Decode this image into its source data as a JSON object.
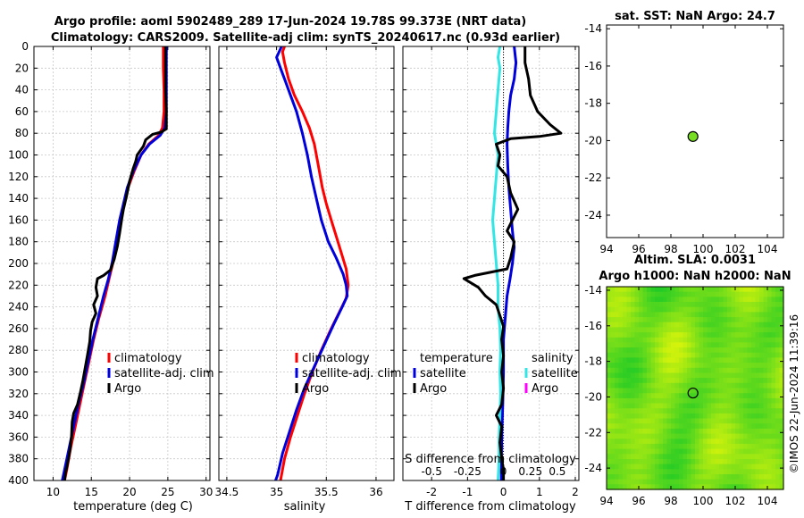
{
  "title": {
    "line1": "Argo profile: aoml 5902489_289 17-Jun-2024 19.78S 99.373E (NRT data)",
    "line2": "Climatology: CARS2009. Satellite-adj clim: synTS_20240617.nc (0.93d earlier)"
  },
  "colors": {
    "climatology": "#ff0000",
    "satellite": "#0000dd",
    "argo": "#000000",
    "sal_satellite": "#33e6e6",
    "sal_argo": "#ff00ff",
    "marker": "#77dd22"
  },
  "chart_data": [
    {
      "type": "line",
      "id": "temperature_profile",
      "xlabel": "temperature (deg C)",
      "ylabel": "",
      "xlim": [
        7.5,
        30.5
      ],
      "ylim": [
        400,
        0
      ],
      "xticks": [
        10,
        15,
        20,
        25,
        30
      ],
      "yticks": [
        0,
        20,
        40,
        60,
        80,
        100,
        120,
        140,
        160,
        180,
        200,
        220,
        240,
        260,
        280,
        300,
        320,
        340,
        360,
        380,
        400
      ],
      "grid": true,
      "legend": [
        "climatology",
        "satellite-adj. clim",
        "Argo"
      ],
      "series": [
        {
          "name": "climatology",
          "color_key": "climatology",
          "points": [
            [
              24.4,
              0
            ],
            [
              24.4,
              20
            ],
            [
              24.5,
              40
            ],
            [
              24.5,
              60
            ],
            [
              24.3,
              75
            ],
            [
              23.8,
              82
            ],
            [
              22.5,
              90
            ],
            [
              21.5,
              100
            ],
            [
              20.6,
              115
            ],
            [
              19.8,
              130
            ],
            [
              19.3,
              145
            ],
            [
              18.8,
              160
            ],
            [
              18.3,
              180
            ],
            [
              17.8,
              200
            ],
            [
              17.3,
              215
            ],
            [
              16.8,
              230
            ],
            [
              16.0,
              250
            ],
            [
              15.3,
              270
            ],
            [
              14.7,
              290
            ],
            [
              14.1,
              310
            ],
            [
              13.5,
              330
            ],
            [
              12.9,
              350
            ],
            [
              12.3,
              370
            ],
            [
              11.8,
              390
            ],
            [
              11.5,
              400
            ]
          ]
        },
        {
          "name": "satellite-adj. clim",
          "color_key": "satellite",
          "points": [
            [
              24.8,
              0
            ],
            [
              24.8,
              20
            ],
            [
              24.8,
              40
            ],
            [
              24.8,
              60
            ],
            [
              24.6,
              75
            ],
            [
              24.0,
              82
            ],
            [
              22.6,
              90
            ],
            [
              21.5,
              100
            ],
            [
              20.5,
              115
            ],
            [
              19.7,
              130
            ],
            [
              19.2,
              145
            ],
            [
              18.7,
              160
            ],
            [
              18.2,
              180
            ],
            [
              17.7,
              200
            ],
            [
              17.2,
              215
            ],
            [
              16.6,
              230
            ],
            [
              15.9,
              250
            ],
            [
              15.2,
              270
            ],
            [
              14.6,
              290
            ],
            [
              14.0,
              310
            ],
            [
              13.3,
              330
            ],
            [
              12.7,
              350
            ],
            [
              12.1,
              370
            ],
            [
              11.5,
              390
            ],
            [
              11.2,
              400
            ]
          ]
        },
        {
          "name": "Argo",
          "color_key": "argo",
          "points": [
            [
              24.7,
              0
            ],
            [
              24.7,
              20
            ],
            [
              24.7,
              40
            ],
            [
              24.8,
              60
            ],
            [
              24.8,
              70
            ],
            [
              24.8,
              76
            ],
            [
              24.1,
              79
            ],
            [
              23.0,
              81
            ],
            [
              22.1,
              86
            ],
            [
              21.8,
              92
            ],
            [
              21.0,
              100
            ],
            [
              20.8,
              106
            ],
            [
              20.5,
              112
            ],
            [
              20.0,
              124
            ],
            [
              19.6,
              138
            ],
            [
              19.2,
              150
            ],
            [
              19.0,
              158
            ],
            [
              18.7,
              172
            ],
            [
              18.4,
              184
            ],
            [
              18.0,
              196
            ],
            [
              17.5,
              206
            ],
            [
              16.6,
              211
            ],
            [
              15.8,
              214
            ],
            [
              15.6,
              222
            ],
            [
              15.8,
              230
            ],
            [
              15.3,
              238
            ],
            [
              15.6,
              246
            ],
            [
              15.1,
              254
            ],
            [
              14.9,
              262
            ],
            [
              14.8,
              272
            ],
            [
              14.5,
              284
            ],
            [
              14.2,
              296
            ],
            [
              13.9,
              308
            ],
            [
              13.6,
              318
            ],
            [
              13.2,
              330
            ],
            [
              12.7,
              338
            ],
            [
              12.5,
              346
            ],
            [
              12.4,
              360
            ],
            [
              12.2,
              372
            ],
            [
              11.9,
              384
            ],
            [
              11.6,
              394
            ],
            [
              11.5,
              400
            ]
          ]
        }
      ]
    },
    {
      "type": "line",
      "id": "salinity_profile",
      "xlabel": "salinity",
      "xlim": [
        34.42,
        36.18
      ],
      "ylim": [
        400,
        0
      ],
      "xticks": [
        34.5,
        35,
        35.5,
        36
      ],
      "xtick_labels": [
        "34.5",
        "35",
        "35.5",
        "36"
      ],
      "grid": true,
      "legend": [
        "climatology",
        "satellite-adj. clim",
        "Argo"
      ],
      "series": [
        {
          "name": "climatology",
          "color_key": "climatology",
          "points": [
            [
              35.08,
              0
            ],
            [
              35.06,
              5
            ],
            [
              35.08,
              15
            ],
            [
              35.12,
              30
            ],
            [
              35.18,
              45
            ],
            [
              35.26,
              60
            ],
            [
              35.33,
              75
            ],
            [
              35.38,
              90
            ],
            [
              35.42,
              110
            ],
            [
              35.46,
              130
            ],
            [
              35.5,
              145
            ],
            [
              35.55,
              160
            ],
            [
              35.6,
              175
            ],
            [
              35.65,
              190
            ],
            [
              35.7,
              205
            ],
            [
              35.72,
              220
            ],
            [
              35.7,
              232
            ],
            [
              35.63,
              245
            ],
            [
              35.55,
              260
            ],
            [
              35.45,
              280
            ],
            [
              35.36,
              300
            ],
            [
              35.28,
              320
            ],
            [
              35.21,
              340
            ],
            [
              35.14,
              360
            ],
            [
              35.08,
              380
            ],
            [
              35.04,
              400
            ]
          ]
        },
        {
          "name": "satellite-adj. clim",
          "color_key": "satellite",
          "points": [
            [
              35.05,
              0
            ],
            [
              35.0,
              10
            ],
            [
              35.04,
              20
            ],
            [
              35.08,
              30
            ],
            [
              35.14,
              45
            ],
            [
              35.2,
              60
            ],
            [
              35.26,
              80
            ],
            [
              35.31,
              100
            ],
            [
              35.35,
              120
            ],
            [
              35.4,
              140
            ],
            [
              35.45,
              160
            ],
            [
              35.52,
              180
            ],
            [
              35.6,
              195
            ],
            [
              35.67,
              210
            ],
            [
              35.7,
              220
            ],
            [
              35.71,
              230
            ],
            [
              35.66,
              240
            ],
            [
              35.58,
              255
            ],
            [
              35.48,
              275
            ],
            [
              35.38,
              295
            ],
            [
              35.28,
              315
            ],
            [
              35.2,
              335
            ],
            [
              35.13,
              355
            ],
            [
              35.06,
              375
            ],
            [
              35.01,
              395
            ],
            [
              34.99,
              400
            ]
          ]
        }
      ]
    },
    {
      "type": "line",
      "id": "difference_profile",
      "xlabel": "T difference from climatology",
      "xlabel_top": "S difference from climatology",
      "xlim": [
        -2.8,
        2.1
      ],
      "ylim": [
        400,
        0
      ],
      "xticks": [
        -2,
        -1,
        0,
        1,
        2
      ],
      "xtick_labels": [
        "-2",
        "-1",
        "0",
        "1",
        "2"
      ],
      "top_ticks": [
        -2,
        -1,
        0,
        0.75,
        1.5
      ],
      "top_tick_labels": [
        "-0.5",
        "-0.25",
        "0",
        "0.25",
        "0.5"
      ],
      "grid": true,
      "legend_temperature": {
        "title": "temperature",
        "entries": [
          "satellite",
          "Argo"
        ]
      },
      "legend_salinity": {
        "title": "salinity",
        "entries": [
          "satellite",
          "Argo"
        ]
      },
      "series": [
        {
          "name": "T satellite",
          "color_key": "satellite",
          "points": [
            [
              0.3,
              0
            ],
            [
              0.35,
              15
            ],
            [
              0.3,
              30
            ],
            [
              0.2,
              45
            ],
            [
              0.15,
              60
            ],
            [
              0.12,
              75
            ],
            [
              0.1,
              90
            ],
            [
              0.12,
              110
            ],
            [
              0.15,
              130
            ],
            [
              0.2,
              150
            ],
            [
              0.25,
              170
            ],
            [
              0.3,
              185
            ],
            [
              0.25,
              200
            ],
            [
              0.18,
              215
            ],
            [
              0.1,
              230
            ],
            [
              0.05,
              250
            ],
            [
              0.0,
              270
            ],
            [
              0.0,
              300
            ],
            [
              -0.02,
              330
            ],
            [
              -0.05,
              360
            ],
            [
              -0.06,
              390
            ],
            [
              -0.06,
              400
            ]
          ]
        },
        {
          "name": "S satellite",
          "color_key": "sal_satellite",
          "points": [
            [
              -0.1,
              0
            ],
            [
              -0.15,
              10
            ],
            [
              -0.1,
              20
            ],
            [
              -0.15,
              40
            ],
            [
              -0.2,
              60
            ],
            [
              -0.25,
              80
            ],
            [
              -0.15,
              100
            ],
            [
              -0.2,
              120
            ],
            [
              -0.25,
              140
            ],
            [
              -0.3,
              160
            ],
            [
              -0.25,
              180
            ],
            [
              -0.2,
              200
            ],
            [
              -0.15,
              220
            ],
            [
              -0.15,
              240
            ],
            [
              -0.1,
              260
            ],
            [
              -0.08,
              280
            ],
            [
              -0.1,
              300
            ],
            [
              -0.08,
              320
            ],
            [
              -0.1,
              340
            ],
            [
              -0.12,
              360
            ],
            [
              -0.12,
              380
            ],
            [
              -0.15,
              400
            ]
          ]
        },
        {
          "name": "T Argo",
          "color_key": "argo",
          "points": [
            [
              0.6,
              0
            ],
            [
              0.6,
              15
            ],
            [
              0.7,
              30
            ],
            [
              0.75,
              45
            ],
            [
              0.95,
              60
            ],
            [
              1.3,
              72
            ],
            [
              1.6,
              80
            ],
            [
              1.0,
              83
            ],
            [
              0.2,
              85
            ],
            [
              -0.2,
              90
            ],
            [
              -0.1,
              100
            ],
            [
              -0.15,
              110
            ],
            [
              0.1,
              120
            ],
            [
              0.2,
              135
            ],
            [
              0.4,
              150
            ],
            [
              0.25,
              160
            ],
            [
              0.1,
              170
            ],
            [
              0.3,
              180
            ],
            [
              0.2,
              195
            ],
            [
              0.1,
              205
            ],
            [
              -0.8,
              211
            ],
            [
              -1.1,
              214
            ],
            [
              -0.7,
              222
            ],
            [
              -0.5,
              230
            ],
            [
              -0.2,
              238
            ],
            [
              -0.1,
              248
            ],
            [
              0.0,
              258
            ],
            [
              -0.05,
              270
            ],
            [
              0.0,
              285
            ],
            [
              -0.05,
              300
            ],
            [
              0.0,
              315
            ],
            [
              -0.05,
              330
            ],
            [
              -0.2,
              340
            ],
            [
              -0.05,
              350
            ],
            [
              -0.1,
              365
            ],
            [
              -0.05,
              380
            ],
            [
              0.0,
              390
            ],
            [
              0.0,
              400
            ]
          ]
        }
      ]
    },
    {
      "type": "scatter",
      "id": "sst_map",
      "title": "sat. SST: NaN Argo: 24.7",
      "xlim": [
        94,
        105
      ],
      "ylim": [
        -25.2,
        -13.8
      ],
      "xticks": [
        94,
        96,
        98,
        100,
        102,
        104
      ],
      "yticks": [
        -14,
        -16,
        -18,
        -20,
        -22,
        -24
      ],
      "points": [
        [
          99.373,
          -19.78
        ]
      ]
    },
    {
      "type": "heatmap",
      "id": "sla_map",
      "title_line1": "Altim. SLA: 0.0031",
      "title_line2": "Argo h1000: NaN h2000: NaN",
      "xlim": [
        94,
        105
      ],
      "ylim": [
        -25.2,
        -13.8
      ],
      "xticks": [
        94,
        96,
        98,
        100,
        102,
        104
      ],
      "yticks": [
        -14,
        -16,
        -18,
        -20,
        -22,
        -24
      ],
      "points": [
        [
          99.373,
          -19.78
        ]
      ]
    }
  ],
  "watermark": "©IMOS 22-Jun-2024 11:39:16"
}
